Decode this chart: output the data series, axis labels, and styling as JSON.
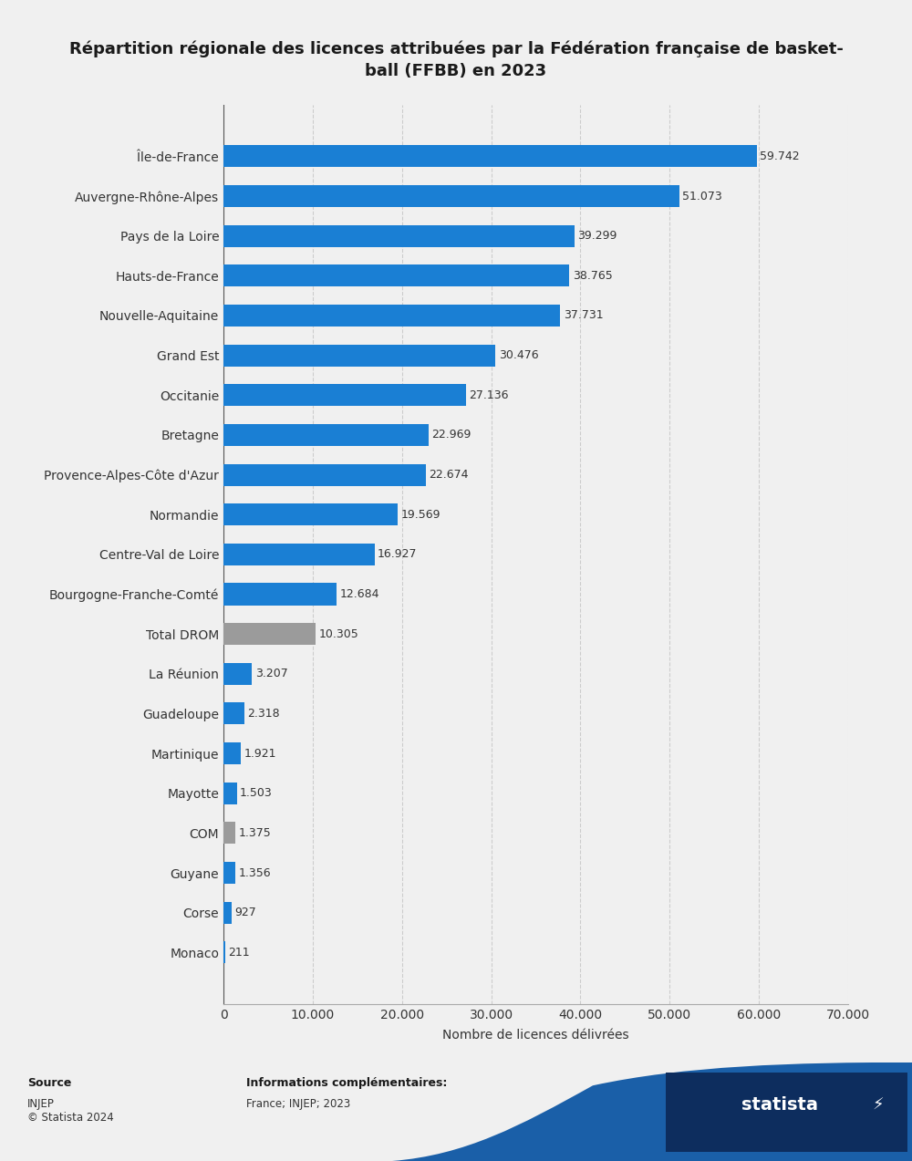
{
  "title": "Répartition régionale des licences attribuées par la Fédération française de basket-\nball (FFBB) en 2023",
  "categories": [
    "Île-de-France",
    "Auvergne-Rhône-Alpes",
    "Pays de la Loire",
    "Hauts-de-France",
    "Nouvelle-Aquitaine",
    "Grand Est",
    "Occitanie",
    "Bretagne",
    "Provence-Alpes-Côte d'Azur",
    "Normandie",
    "Centre-Val de Loire",
    "Bourgogne-Franche-Comté",
    "Total DROM",
    "La Réunion",
    "Guadeloupe",
    "Martinique",
    "Mayotte",
    "COM",
    "Guyane",
    "Corse",
    "Monaco"
  ],
  "values": [
    59742,
    51073,
    39299,
    38765,
    37731,
    30476,
    27136,
    22969,
    22674,
    19569,
    16927,
    12684,
    10305,
    3207,
    2318,
    1921,
    1503,
    1375,
    1356,
    927,
    211
  ],
  "labels": [
    "59.742",
    "51.073",
    "39.299",
    "38.765",
    "37.731",
    "30.476",
    "27.136",
    "22.969",
    "22.674",
    "19.569",
    "16.927",
    "12.684",
    "10.305",
    "3.207",
    "2.318",
    "1.921",
    "1.503",
    "1.375",
    "1.356",
    "927",
    "211"
  ],
  "colors": [
    "#1a7fd4",
    "#1a7fd4",
    "#1a7fd4",
    "#1a7fd4",
    "#1a7fd4",
    "#1a7fd4",
    "#1a7fd4",
    "#1a7fd4",
    "#1a7fd4",
    "#1a7fd4",
    "#1a7fd4",
    "#1a7fd4",
    "#9b9b9b",
    "#1a7fd4",
    "#1a7fd4",
    "#1a7fd4",
    "#1a7fd4",
    "#9b9b9b",
    "#1a7fd4",
    "#1a7fd4",
    "#1a7fd4"
  ],
  "xlabel": "Nombre de licences délivrées",
  "xlim": [
    0,
    70000
  ],
  "xticks": [
    0,
    10000,
    20000,
    30000,
    40000,
    50000,
    60000,
    70000
  ],
  "xtick_labels": [
    "0",
    "10.000",
    "20.000",
    "30.000",
    "40.000",
    "50.000",
    "60.000",
    "70.000"
  ],
  "bg_color": "#f0f0f0",
  "title_fontsize": 13,
  "label_fontsize": 10,
  "tick_fontsize": 10,
  "value_fontsize": 9,
  "source_text": "Source",
  "source_body": "INJEP\n© Statista 2024",
  "info_title": "Informations complémentaires:",
  "info_body": "France; INJEP; 2023",
  "logo_color": "#1a5fa8",
  "logo_dark_color": "#0d2d5e"
}
